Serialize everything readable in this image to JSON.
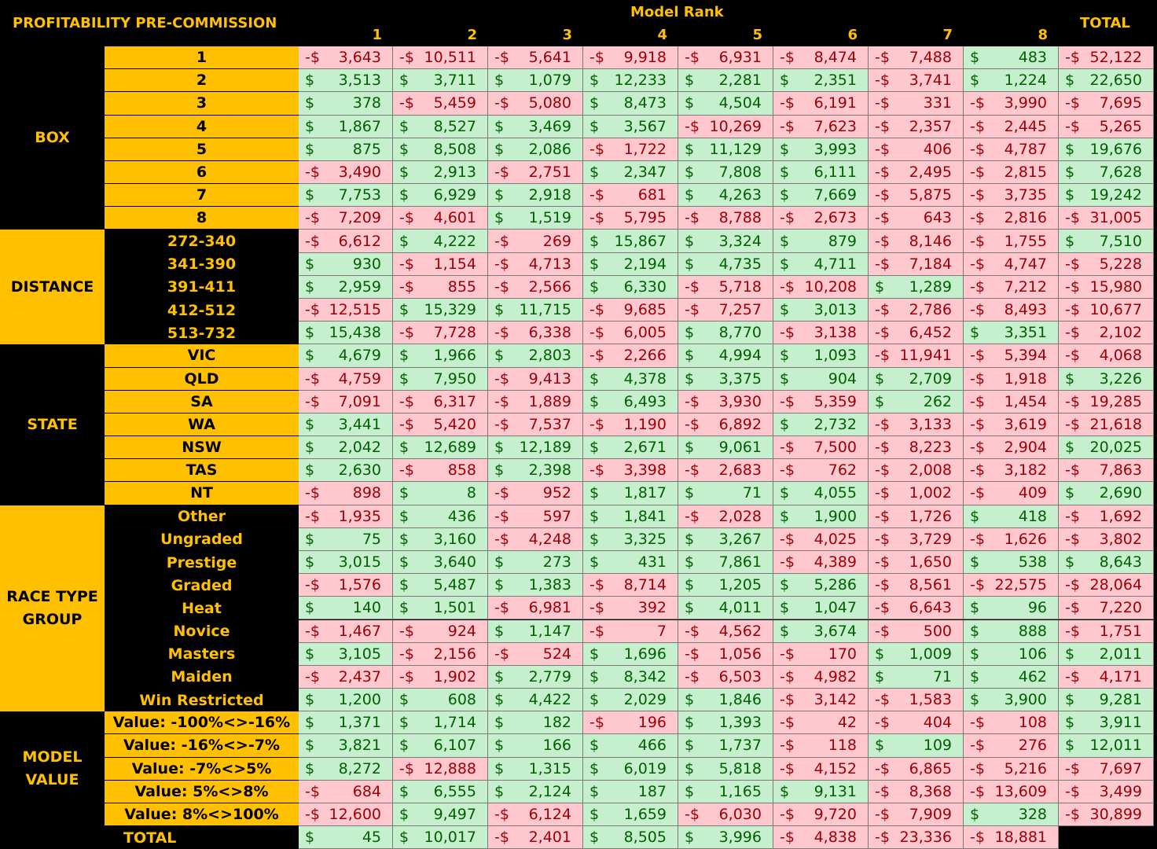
{
  "header": {
    "title": "PROFITABILITY PRE-COMMISSION",
    "model_rank_label": "Model Rank",
    "columns": [
      "1",
      "2",
      "3",
      "4",
      "5",
      "6",
      "7",
      "8"
    ],
    "total_label": "TOTAL"
  },
  "sections": [
    {
      "name": "BOX",
      "rows": [
        {
          "label": "1",
          "values": [
            -3643,
            -10511,
            -5641,
            -9918,
            -6931,
            -8474,
            -7488,
            483
          ],
          "total": -52122
        },
        {
          "label": "2",
          "values": [
            3513,
            3711,
            1079,
            12233,
            2281,
            2351,
            -3741,
            1224
          ],
          "total": 22650
        },
        {
          "label": "3",
          "values": [
            378,
            -5459,
            -5080,
            8473,
            4504,
            -6191,
            -331,
            -3990
          ],
          "total": -7695
        },
        {
          "label": "4",
          "values": [
            1867,
            8527,
            3469,
            3567,
            -10269,
            -7623,
            -2357,
            -2445
          ],
          "total": -5265
        },
        {
          "label": "5",
          "values": [
            875,
            8508,
            2086,
            -1722,
            11129,
            3993,
            -406,
            -4787
          ],
          "total": 19676
        },
        {
          "label": "6",
          "values": [
            -3490,
            2913,
            -2751,
            2347,
            7808,
            6111,
            -2495,
            -2815
          ],
          "total": 7628
        },
        {
          "label": "7",
          "values": [
            7753,
            6929,
            2918,
            -681,
            4263,
            7669,
            -5875,
            -3735
          ],
          "total": 19242
        },
        {
          "label": "8",
          "values": [
            -7209,
            -4601,
            1519,
            -5795,
            -8788,
            -2673,
            -643,
            -2816
          ],
          "total": -31005
        }
      ]
    },
    {
      "name": "DISTANCE",
      "rows": [
        {
          "label": "272-340",
          "values": [
            -6612,
            4222,
            -269,
            15867,
            3324,
            879,
            -8146,
            -1755
          ],
          "total": 7510
        },
        {
          "label": "341-390",
          "values": [
            930,
            -1154,
            -4713,
            2194,
            4735,
            4711,
            -7184,
            -4747
          ],
          "total": -5228
        },
        {
          "label": "391-411",
          "values": [
            2959,
            -855,
            -2566,
            6330,
            -5718,
            -10208,
            1289,
            -7212
          ],
          "total": -15980
        },
        {
          "label": "412-512",
          "values": [
            -12515,
            15329,
            11715,
            -9685,
            -7257,
            3013,
            -2786,
            -8493
          ],
          "total": -10677
        },
        {
          "label": "513-732",
          "values": [
            15438,
            -7728,
            -6338,
            -6005,
            8770,
            -3138,
            -6452,
            3351
          ],
          "total": -2102
        }
      ]
    },
    {
      "name": "STATE",
      "rows": [
        {
          "label": "VIC",
          "values": [
            4679,
            1966,
            2803,
            -2266,
            4994,
            1093,
            -11941,
            -5394
          ],
          "total": -4068
        },
        {
          "label": "QLD",
          "values": [
            -4759,
            7950,
            -9413,
            4378,
            3375,
            904,
            2709,
            -1918
          ],
          "total": 3226
        },
        {
          "label": "SA",
          "values": [
            -7091,
            -6317,
            -1889,
            6493,
            -3930,
            -5359,
            262,
            -1454
          ],
          "total": -19285
        },
        {
          "label": "WA",
          "values": [
            3441,
            -5420,
            -7537,
            -1190,
            -6892,
            2732,
            -3133,
            -3619
          ],
          "total": -21618
        },
        {
          "label": "NSW",
          "values": [
            2042,
            12689,
            12189,
            2671,
            9061,
            -7500,
            -8223,
            -2904
          ],
          "total": 20025
        },
        {
          "label": "TAS",
          "values": [
            2630,
            -858,
            2398,
            -3398,
            -2683,
            -762,
            -2008,
            -3182
          ],
          "total": -7863
        },
        {
          "label": "NT",
          "values": [
            -898,
            8,
            -952,
            1817,
            71,
            4055,
            -1002,
            -409
          ],
          "total": 2690
        }
      ]
    },
    {
      "name": "RACE TYPE\nGROUP",
      "rows": [
        {
          "label": "Other",
          "values": [
            -1935,
            436,
            -597,
            1841,
            -2028,
            1900,
            -1726,
            418
          ],
          "total": -1692
        },
        {
          "label": "Ungraded",
          "values": [
            75,
            3160,
            -4248,
            3325,
            3267,
            -4025,
            -3729,
            -1626
          ],
          "total": -3802
        },
        {
          "label": "Prestige",
          "values": [
            3015,
            3640,
            273,
            431,
            7861,
            -4389,
            -1650,
            538
          ],
          "total": 8643
        },
        {
          "label": "Graded",
          "values": [
            -1576,
            5487,
            1383,
            -8714,
            1205,
            5286,
            -8561,
            -22575
          ],
          "total": -28064
        },
        {
          "label": "Heat",
          "values": [
            140,
            1501,
            -6981,
            -392,
            4011,
            1047,
            -6643,
            96
          ],
          "total": -7220
        },
        {
          "label": "Novice",
          "values": [
            -1467,
            -924,
            1147,
            -7,
            -4562,
            3674,
            -500,
            888
          ],
          "total": -1751
        },
        {
          "label": "Masters",
          "values": [
            3105,
            -2156,
            -524,
            1696,
            -1056,
            -170,
            1009,
            106
          ],
          "total": 2011
        },
        {
          "label": "Maiden",
          "values": [
            -2437,
            -1902,
            2779,
            8342,
            -6503,
            -4982,
            71,
            462
          ],
          "total": -4171
        },
        {
          "label": "Win Restricted",
          "values": [
            1200,
            608,
            4422,
            2029,
            1846,
            -3142,
            -1583,
            3900
          ],
          "total": 9281
        }
      ]
    },
    {
      "name": "MODEL\nVALUE",
      "rows": [
        {
          "label": "Value: -100%<>-16%",
          "values": [
            1371,
            1714,
            182,
            -196,
            1393,
            -42,
            -404,
            -108
          ],
          "total": 3911
        },
        {
          "label": "Value: -16%<>-7%",
          "values": [
            3821,
            6107,
            166,
            466,
            1737,
            -118,
            109,
            -276
          ],
          "total": 12011
        },
        {
          "label": "Value: -7%<>5%",
          "values": [
            8272,
            -12888,
            1315,
            6019,
            5818,
            -4152,
            -6865,
            -5216
          ],
          "total": -7697
        },
        {
          "label": "Value: 5%<>8%",
          "values": [
            -684,
            6555,
            2124,
            187,
            1165,
            9131,
            -8368,
            -13609
          ],
          "total": -3499
        },
        {
          "label": "Value: 8%<>100%",
          "values": [
            -12600,
            9497,
            -6124,
            1659,
            -6030,
            -9720,
            -7909,
            328
          ],
          "total": -30899
        }
      ]
    }
  ],
  "totals_row": {
    "label": "TOTAL",
    "values": [
      45,
      10017,
      -2401,
      8505,
      3996,
      -4838,
      -23336,
      -18881
    ]
  },
  "currency_symbol": "$",
  "colors": {
    "header_yellow": "#ffc000",
    "positive_fill": "#c6efce",
    "positive_text": "#006100",
    "negative_fill": "#ffc7ce",
    "negative_text": "#9c0006"
  }
}
